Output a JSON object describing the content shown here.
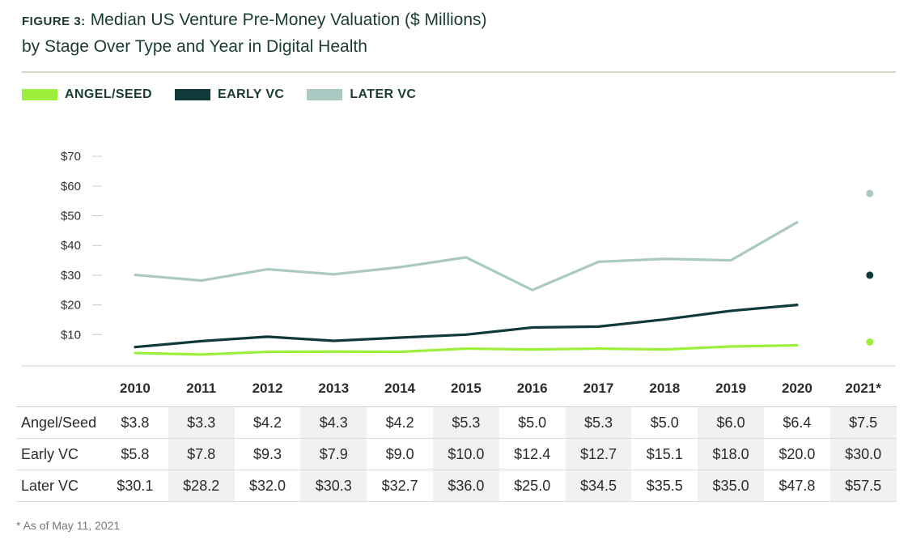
{
  "header": {
    "figure_label": "FIGURE 3:",
    "title_line1": "Median US Venture Pre-Money Valuation ($ Millions)",
    "title_line2": "by Stage Over Type and Year in Digital Health"
  },
  "colors": {
    "angel_seed": "#9cf03b",
    "early_vc": "#10393a",
    "later_vc": "#aac9c3"
  },
  "footnote": "* As of May 11, 2021",
  "chart_data": {
    "type": "line",
    "x": [
      "2010",
      "2011",
      "2012",
      "2013",
      "2014",
      "2015",
      "2016",
      "2017",
      "2018",
      "2019",
      "2020",
      "2021*"
    ],
    "y_ticks": [
      "$70",
      "$60",
      "$50",
      "$40",
      "$30",
      "$20",
      "$10"
    ],
    "ylim": [
      0,
      70
    ],
    "series": [
      {
        "name": "ANGEL/SEED",
        "values": [
          3.8,
          3.3,
          4.2,
          4.3,
          4.2,
          5.3,
          5.0,
          5.3,
          5.0,
          6.0,
          6.4,
          7.5
        ]
      },
      {
        "name": "EARLY VC",
        "values": [
          5.8,
          7.8,
          9.3,
          7.9,
          9.0,
          10.0,
          12.4,
          12.7,
          15.1,
          18.0,
          20.0,
          30.0
        ]
      },
      {
        "name": "LATER VC",
        "values": [
          30.1,
          28.2,
          32.0,
          30.3,
          32.7,
          36.0,
          25.0,
          34.5,
          35.5,
          35.0,
          47.8,
          57.5
        ]
      }
    ],
    "note": "2021* shown as a separate point, not connected",
    "legend_position": "top-left"
  },
  "table": {
    "columns": [
      "2010",
      "2011",
      "2012",
      "2013",
      "2014",
      "2015",
      "2016",
      "2017",
      "2018",
      "2019",
      "2020",
      "2021*"
    ],
    "rows": [
      {
        "label": "Angel/Seed",
        "cells": [
          "$3.8",
          "$3.3",
          "$4.2",
          "$4.3",
          "$4.2",
          "$5.3",
          "$5.0",
          "$5.3",
          "$5.0",
          "$6.0",
          "$6.4",
          "$7.5"
        ]
      },
      {
        "label": "Early VC",
        "cells": [
          "$5.8",
          "$7.8",
          "$9.3",
          "$7.9",
          "$9.0",
          "$10.0",
          "$12.4",
          "$12.7",
          "$15.1",
          "$18.0",
          "$20.0",
          "$30.0"
        ]
      },
      {
        "label": "Later VC",
        "cells": [
          "$30.1",
          "$28.2",
          "$32.0",
          "$30.3",
          "$32.7",
          "$36.0",
          "$25.0",
          "$34.5",
          "$35.5",
          "$35.0",
          "$47.8",
          "$57.5"
        ]
      }
    ]
  }
}
